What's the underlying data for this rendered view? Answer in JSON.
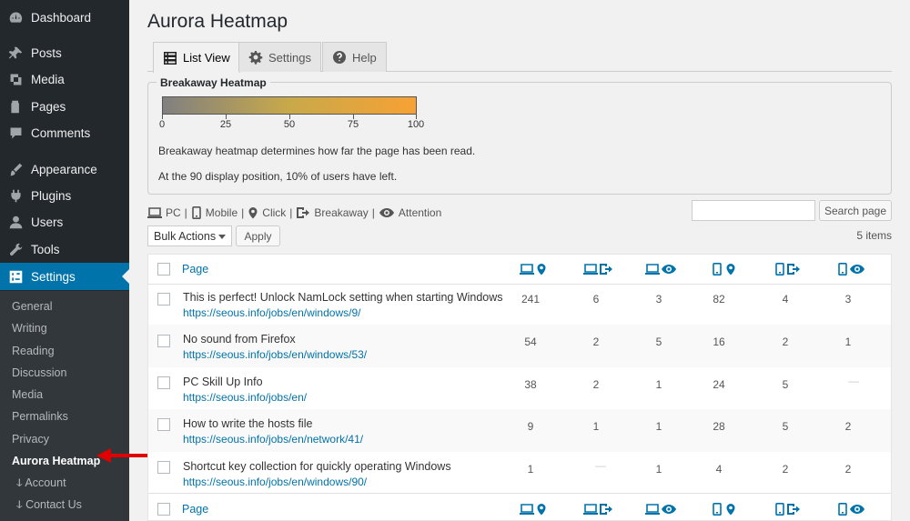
{
  "sidebar": {
    "menu": [
      {
        "label": "Dashboard",
        "icon": "dashboard-icon"
      },
      {
        "label": "Posts",
        "icon": "pin-icon"
      },
      {
        "label": "Media",
        "icon": "media-icon"
      },
      {
        "label": "Pages",
        "icon": "pages-icon"
      },
      {
        "label": "Comments",
        "icon": "comments-icon"
      },
      {
        "label": "Appearance",
        "icon": "brush-icon"
      },
      {
        "label": "Plugins",
        "icon": "plugins-icon"
      },
      {
        "label": "Users",
        "icon": "users-icon"
      },
      {
        "label": "Tools",
        "icon": "wrench-icon"
      },
      {
        "label": "Settings",
        "icon": "settings-icon"
      }
    ],
    "submenu": [
      "General",
      "Writing",
      "Reading",
      "Discussion",
      "Media",
      "Permalinks",
      "Privacy",
      "Aurora Heatmap",
      "ↆ Account",
      "ↆ Contact Us"
    ]
  },
  "page_title": "Aurora Heatmap",
  "tabs": [
    {
      "label": "List View",
      "icon": "list-icon"
    },
    {
      "label": "Settings",
      "icon": "gear-icon"
    },
    {
      "label": "Help",
      "icon": "help-icon"
    }
  ],
  "breakaway": {
    "legend": "Breakaway Heatmap",
    "scale": [
      "0",
      "25",
      "50",
      "75",
      "100"
    ],
    "description1": "Breakaway heatmap determines how far the page has been read.",
    "description2": "At the 90 display position, 10% of users have left.",
    "gradient_colors": [
      "#808080",
      "#c8a94a",
      "#f7a135"
    ]
  },
  "legend_items": [
    {
      "label": "PC",
      "icon": "pc-icon"
    },
    {
      "label": "Mobile",
      "icon": "mobile-icon"
    },
    {
      "label": "Click",
      "icon": "click-pin-icon"
    },
    {
      "label": "Breakaway",
      "icon": "breakaway-icon"
    },
    {
      "label": "Attention",
      "icon": "eye-icon"
    }
  ],
  "legend_separator": "|",
  "search": {
    "button": "Search page",
    "value": ""
  },
  "bulk": {
    "select": "Bulk Actions",
    "apply": "Apply"
  },
  "items_count": "5 items",
  "table": {
    "column_page": "Page",
    "rows": [
      {
        "title": "This is perfect! Unlock NamLock setting when starting Windows",
        "url": "https://seous.info/jobs/en/windows/9/",
        "values": [
          "241",
          "6",
          "3",
          "82",
          "4",
          "3"
        ]
      },
      {
        "title": "No sound from Firefox",
        "url": "https://seous.info/jobs/en/windows/53/",
        "values": [
          "54",
          "2",
          "5",
          "16",
          "2",
          "1"
        ]
      },
      {
        "title": "PC Skill Up Info",
        "url": "https://seous.info/jobs/en/",
        "values": [
          "38",
          "2",
          "1",
          "24",
          "5",
          "—"
        ]
      },
      {
        "title": "How to write the hosts file",
        "url": "https://seous.info/jobs/en/network/41/",
        "values": [
          "9",
          "1",
          "1",
          "28",
          "5",
          "2"
        ]
      },
      {
        "title": "Shortcut key collection for quickly operating Windows",
        "url": "https://seous.info/jobs/en/windows/90/",
        "values": [
          "1",
          "—",
          "1",
          "4",
          "2",
          "2"
        ]
      }
    ]
  },
  "colors": {
    "accent": "#0073aa",
    "sidebar": "#23282d",
    "annotation_arrow": "#e00000"
  }
}
